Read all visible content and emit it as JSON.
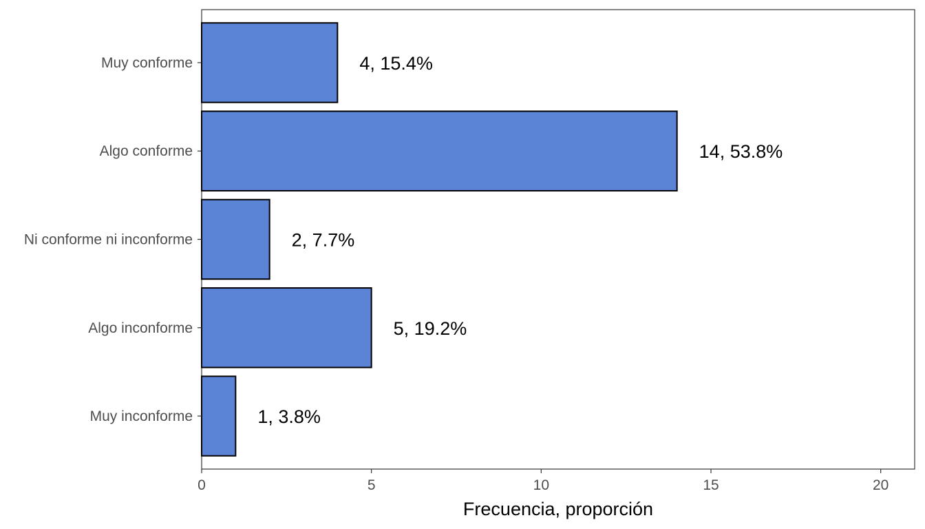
{
  "chart_data": {
    "type": "bar",
    "orientation": "horizontal",
    "categories": [
      "Muy conforme",
      "Algo conforme",
      "Ni conforme ni inconforme",
      "Algo inconforme",
      "Muy inconforme"
    ],
    "values": [
      4,
      14,
      2,
      5,
      1
    ],
    "data_labels": [
      "4, 15.4%",
      "14, 53.8%",
      "2, 7.7%",
      "5, 19.2%",
      "1, 3.8%"
    ],
    "xlabel": "Frecuencia, proporción",
    "ylabel": "",
    "xlim": [
      0,
      21
    ],
    "x_ticks": [
      0,
      5,
      10,
      15,
      20
    ],
    "x_tick_labels": [
      "0",
      "5",
      "10",
      "15",
      "20"
    ],
    "grid": false,
    "legend": "none",
    "colors": {
      "bar_fill": "#5b84d6",
      "bar_stroke": "#000000",
      "axis_text": "#4d4d4d",
      "label_text": "#000000"
    }
  }
}
